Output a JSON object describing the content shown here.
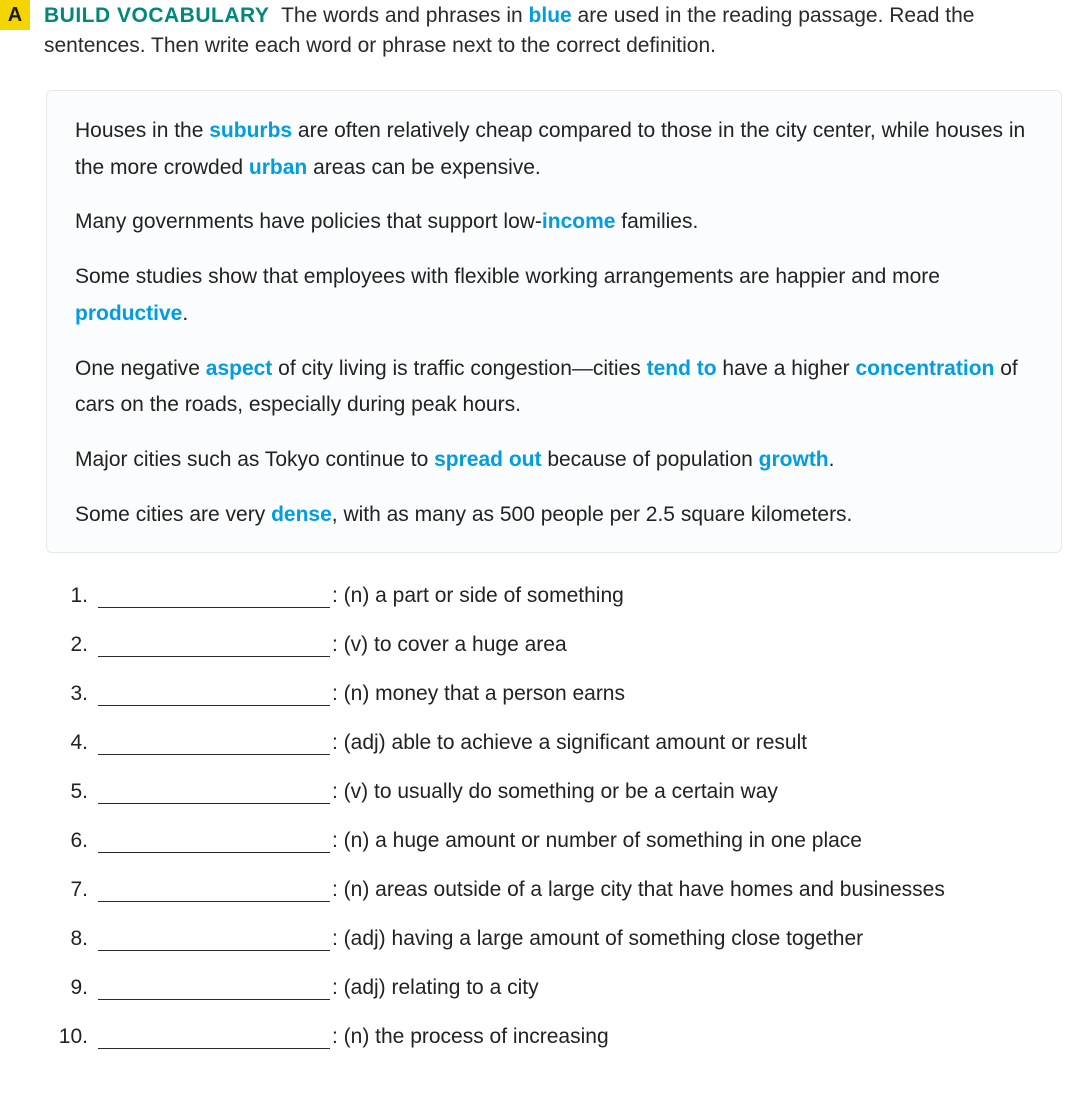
{
  "header": {
    "badge": "A",
    "title": "BUILD VOCABULARY",
    "intro_before_blue": "The words and phrases in ",
    "intro_blue": "blue",
    "intro_after_blue": " are used in the reading passage. Read the sentences. Then write each word or phrase next to the correct definition."
  },
  "examples": {
    "p1": {
      "t1": "Houses in the ",
      "w1": "suburbs",
      "t2": " are often relatively cheap compared to those in the city center, while houses in the more crowded ",
      "w2": "urban",
      "t3": " areas can be expensive."
    },
    "p2": {
      "t1": "Many governments have policies that support low-",
      "w1": "income",
      "t2": " families."
    },
    "p3": {
      "t1": "Some studies show that employees with flexible working arrangements are happier and more ",
      "w1": "productive",
      "t2": "."
    },
    "p4": {
      "t1": "One negative ",
      "w1": "aspect",
      "t2": " of city living is traffic congestion—cities ",
      "w2": "tend to",
      "t3": " have a higher ",
      "w3": "concentration",
      "t4": " of cars on the roads, especially during peak hours."
    },
    "p5": {
      "t1": "Major cities such as Tokyo continue to ",
      "w1": "spread out",
      "t2": " because of population ",
      "w2": "growth",
      "t3": "."
    },
    "p6": {
      "t1": "Some cities are very ",
      "w1": "dense",
      "t2": ", with as many as 500 people per 2.5 square kilometers."
    }
  },
  "definitions": [
    {
      "num": "1.",
      "text": ": (n) a part or side of something"
    },
    {
      "num": "2.",
      "text": ": (v) to cover a huge area"
    },
    {
      "num": "3.",
      "text": ": (n) money that a person earns"
    },
    {
      "num": "4.",
      "text": ": (adj) able to achieve a significant amount or result"
    },
    {
      "num": "5.",
      "text": ": (v) to usually do something or be a certain way"
    },
    {
      "num": "6.",
      "text": ": (n) a huge amount or number of something in one place"
    },
    {
      "num": "7.",
      "text": ": (n) areas outside of a large city that have homes and businesses"
    },
    {
      "num": "8.",
      "text": ": (adj) having a large amount of something close together"
    },
    {
      "num": "9.",
      "text": ": (adj) relating to a city"
    },
    {
      "num": "10.",
      "text": ": (n) the process of increasing"
    }
  ]
}
